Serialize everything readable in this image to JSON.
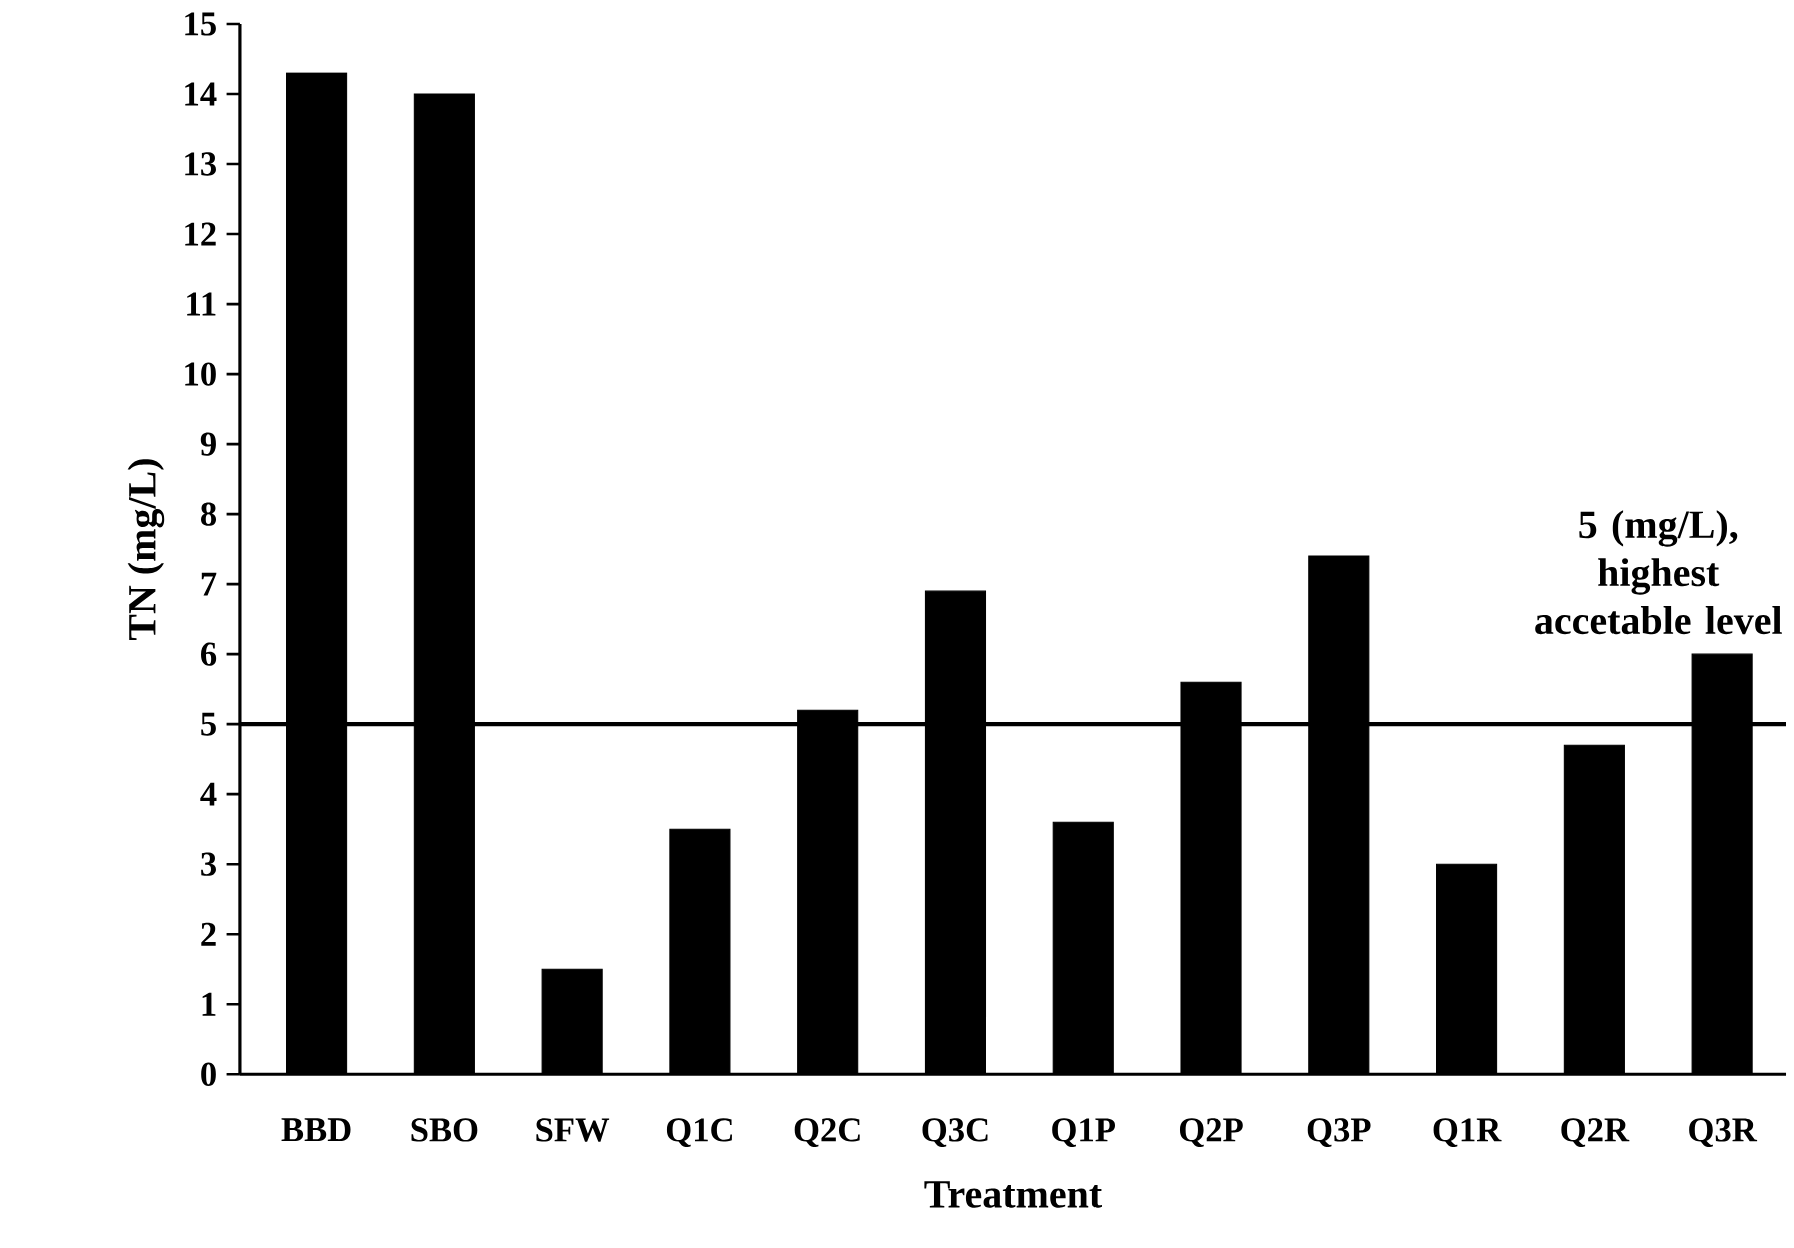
{
  "chart_data": {
    "type": "bar",
    "xlabel": "Treatment",
    "ylabel": "TN (mg/L)",
    "categories": [
      "BBD",
      "SBO",
      "SFW",
      "Q1C",
      "Q2C",
      "Q3C",
      "Q1P",
      "Q2P",
      "Q3P",
      "Q1R",
      "Q2R",
      "Q3R"
    ],
    "values": [
      14.3,
      14.0,
      1.5,
      3.5,
      5.2,
      6.9,
      3.6,
      5.6,
      7.4,
      3.0,
      4.7,
      6.0
    ],
    "color": "#000000",
    "ylim": [
      0,
      15
    ],
    "yticks": [
      0,
      1,
      2,
      3,
      4,
      5,
      6,
      7,
      8,
      9,
      10,
      11,
      12,
      13,
      14,
      15
    ],
    "grid": false,
    "ref_lines": [
      {
        "axis": "y",
        "value": 5,
        "label": "5 (mg/L), highest accetable level",
        "color": "#000000"
      }
    ]
  }
}
